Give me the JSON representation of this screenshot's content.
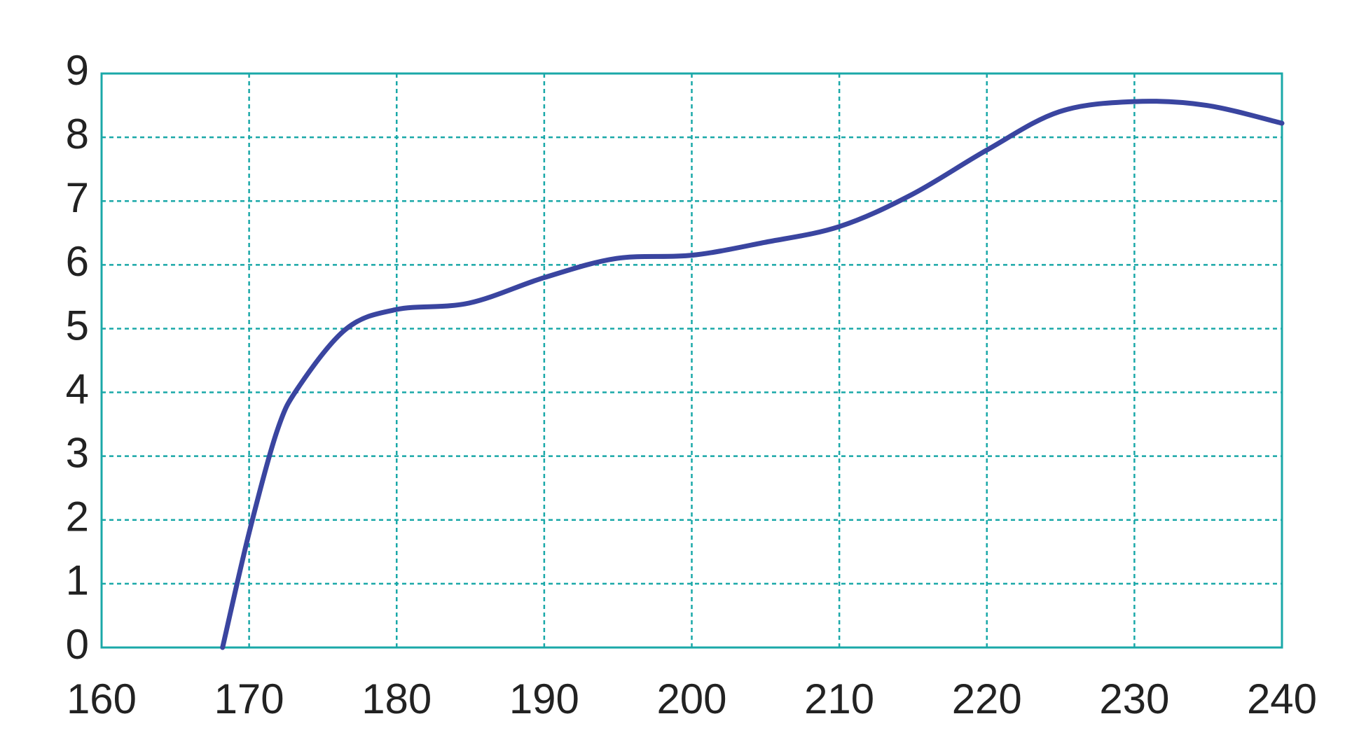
{
  "chart_data": {
    "type": "line",
    "x": [
      168.2,
      170,
      171.9,
      173.4,
      176.6,
      180,
      184.9,
      190,
      194.9,
      200,
      204.9,
      210,
      214.9,
      220,
      224.9,
      230,
      234.9,
      240
    ],
    "series": [
      {
        "color": "#3a45a0",
        "values": [
          0,
          1.8,
          3.4,
          4.1,
          5.0,
          5.3,
          5.4,
          5.8,
          6.1,
          6.15,
          6.35,
          6.6,
          7.1,
          7.8,
          8.4,
          8.56,
          8.5,
          8.22
        ]
      }
    ],
    "xlim": [
      160,
      240
    ],
    "xticks": [
      160,
      170,
      180,
      190,
      200,
      210,
      220,
      230,
      240
    ],
    "ylim": [
      0,
      9
    ],
    "yticks": [
      0,
      1,
      2,
      3,
      4,
      5,
      6,
      7,
      8,
      9
    ],
    "grid": true,
    "grid_color": "#1aa8a8"
  }
}
